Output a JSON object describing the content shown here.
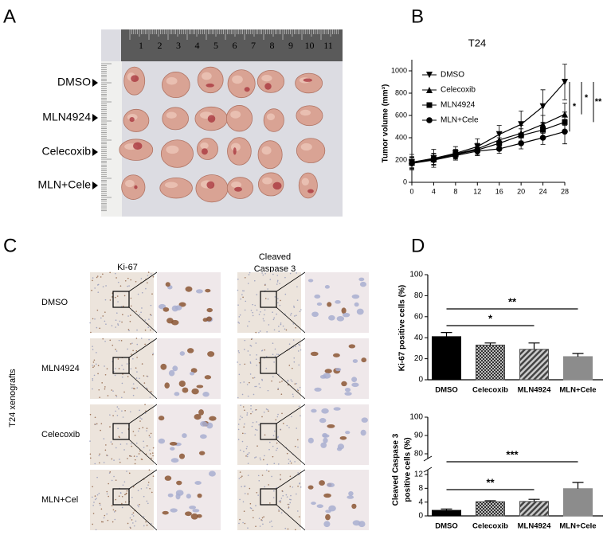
{
  "panel_letters": [
    "A",
    "B",
    "C",
    "D"
  ],
  "panel_a": {
    "groups": [
      "DMSO",
      "MLN4924",
      "Celecoxib",
      "MLN+Cele"
    ],
    "ruler_labels": [
      1,
      2,
      3,
      4,
      5,
      6,
      7,
      8,
      9,
      10,
      11
    ]
  },
  "panel_c": {
    "columns": [
      [
        "Ki-67"
      ],
      [
        "Cleaved",
        "Caspase 3"
      ]
    ],
    "rows": [
      "DMSO",
      "MLN4924",
      "Celecoxib",
      "MLN+Cel"
    ],
    "side_label": "T24 xenografts"
  },
  "chart_data": [
    {
      "type": "line",
      "title": "T24",
      "y_label": "Tumor volume (mm³)",
      "x": [
        0,
        4,
        8,
        12,
        16,
        20,
        24,
        28
      ],
      "xlim": [
        0,
        28
      ],
      "xticks": [
        0,
        4,
        8,
        12,
        16,
        20,
        24,
        28
      ],
      "ylim": [
        0,
        1100
      ],
      "yticks": [
        0,
        200,
        400,
        600,
        800,
        1000
      ],
      "series": [
        {
          "name": "DMSO",
          "color": "#000000",
          "marker": "triangle-down",
          "values": [
            180,
            215,
            260,
            320,
            430,
            520,
            680,
            900
          ],
          "errors": [
            70,
            80,
            60,
            70,
            80,
            120,
            150,
            160
          ]
        },
        {
          "name": "Celecoxib",
          "color": "#000000",
          "marker": "triangle-up",
          "values": [
            180,
            210,
            255,
            300,
            380,
            440,
            520,
            610
          ],
          "errors": [
            50,
            50,
            40,
            50,
            60,
            70,
            80,
            100
          ]
        },
        {
          "name": "MLN4924",
          "color": "#000000",
          "marker": "square",
          "values": [
            175,
            205,
            250,
            290,
            350,
            420,
            470,
            540
          ],
          "errors": [
            50,
            50,
            40,
            50,
            50,
            60,
            70,
            90
          ]
        },
        {
          "name": "MLN+Cele",
          "color": "#000000",
          "marker": "circle",
          "values": [
            170,
            200,
            240,
            280,
            300,
            350,
            400,
            455
          ],
          "errors": [
            50,
            40,
            40,
            40,
            40,
            50,
            60,
            110
          ]
        }
      ],
      "significance": [
        {
          "label": "*",
          "between": [
            "DMSO",
            "MLN+Cele"
          ]
        },
        {
          "label": "*",
          "between": [
            "DMSO",
            "Celecoxib"
          ]
        },
        {
          "label": "**",
          "between": [
            "DMSO",
            "MLN4924"
          ]
        }
      ]
    },
    {
      "type": "bar",
      "y_label": [
        "Ki-67 positive cells (%)"
      ],
      "categories": [
        "DMSO",
        "Celecoxib",
        "MLN4924",
        "MLN+Cele"
      ],
      "values": [
        41,
        33,
        29,
        22
      ],
      "errors": [
        4,
        2,
        6,
        3
      ],
      "colors": [
        "#000000",
        "#444444",
        "#555555",
        "#8c8c8c"
      ],
      "patterns": [
        "solid",
        "checker",
        "diagonal",
        "solid"
      ],
      "ylim": [
        0,
        100
      ],
      "yticks": [
        0,
        20,
        40,
        60,
        80,
        100
      ],
      "significance": [
        {
          "label": "**",
          "between": [
            "DMSO",
            "MLN+Cele"
          ]
        },
        {
          "label": "*",
          "between": [
            "DMSO",
            "MLN4924"
          ]
        }
      ]
    },
    {
      "type": "bar",
      "y_label": [
        "Cleaved Caspase 3",
        "positive cells (%)"
      ],
      "categories": [
        "DMSO",
        "Celecoxib",
        "MLN4924",
        "MLN+Cele"
      ],
      "values": [
        1.6,
        4.1,
        4.2,
        7.9
      ],
      "errors": [
        0.4,
        0.3,
        0.6,
        1.8
      ],
      "colors": [
        "#000000",
        "#444444",
        "#555555",
        "#8c8c8c"
      ],
      "patterns": [
        "solid",
        "checker",
        "diagonal",
        "solid"
      ],
      "ylim": [
        0,
        12
      ],
      "yticks": [
        0,
        4,
        8,
        12
      ],
      "ylim_break": [
        80,
        100
      ],
      "yticks_break": [
        80,
        90,
        100
      ],
      "significance": [
        {
          "label": "***",
          "between": [
            "DMSO",
            "MLN+Cele"
          ]
        },
        {
          "label": "**",
          "between": [
            "DMSO",
            "MLN4924"
          ]
        }
      ]
    }
  ]
}
